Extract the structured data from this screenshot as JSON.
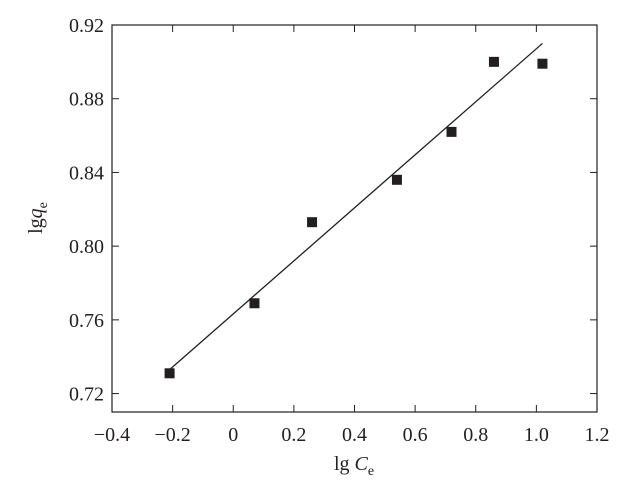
{
  "chart_data": {
    "type": "scatter",
    "xlabel": {
      "main": "lg ",
      "var": "C",
      "sub": "e"
    },
    "ylabel": {
      "main": "lg",
      "var": "q",
      "sub": "e"
    },
    "xlim": [
      -0.4,
      1.2
    ],
    "ylim": [
      0.71,
      0.92
    ],
    "x_ticks": [
      -0.4,
      -0.2,
      0,
      0.2,
      0.4,
      0.6,
      0.8,
      1.0,
      1.2
    ],
    "x_tick_labels": [
      "−0.4",
      "−0.2",
      "0",
      "0.2",
      "0.4",
      "0.6",
      "0.8",
      "1.0",
      "1.2"
    ],
    "y_ticks": [
      0.72,
      0.76,
      0.8,
      0.84,
      0.88,
      0.92
    ],
    "y_tick_labels": [
      "0.72",
      "0.76",
      "0.80",
      "0.84",
      "0.88",
      "0.92"
    ],
    "grid": false,
    "series": [
      {
        "marker": "square",
        "color": "#231f20",
        "points": [
          {
            "x": -0.21,
            "y": 0.731
          },
          {
            "x": 0.07,
            "y": 0.769
          },
          {
            "x": 0.26,
            "y": 0.813
          },
          {
            "x": 0.54,
            "y": 0.836
          },
          {
            "x": 0.72,
            "y": 0.862
          },
          {
            "x": 0.86,
            "y": 0.9
          },
          {
            "x": 1.02,
            "y": 0.899
          }
        ]
      }
    ],
    "fit_line": {
      "x": [
        -0.21,
        1.02
      ],
      "y": [
        0.733,
        0.91
      ],
      "color": "#231f20"
    }
  }
}
